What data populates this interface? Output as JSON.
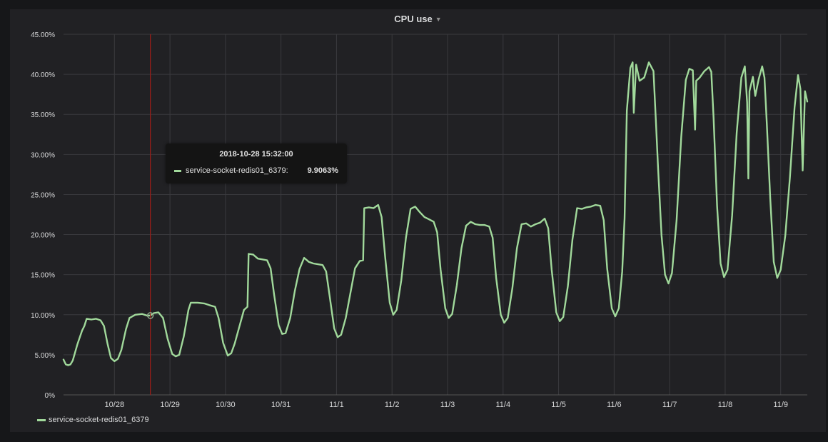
{
  "panel": {
    "title": "CPU use",
    "caret_icon": "caret-down-icon"
  },
  "colors": {
    "series": "#a1d99b",
    "crosshair": "#9e1d18",
    "grid": "#3a3a3e",
    "text": "#d8d9da",
    "background": "#212124"
  },
  "tooltip": {
    "time": "2018-10-28 15:32:00",
    "series_name": "service-socket-redis01_6379:",
    "value": "9.9063%"
  },
  "chart_data": {
    "type": "line",
    "title": "CPU use",
    "xlabel": "",
    "ylabel": "",
    "ylim": [
      0,
      45
    ],
    "xlim": [
      "2018-10-27T02:00",
      "2018-11-09T11:30"
    ],
    "y_ticks": [
      "0%",
      "5.00%",
      "10.00%",
      "15.00%",
      "20.00%",
      "25.00%",
      "30.00%",
      "35.00%",
      "40.00%",
      "45.00%"
    ],
    "y_tick_values": [
      0,
      5,
      10,
      15,
      20,
      25,
      30,
      35,
      40,
      45
    ],
    "x_ticks": [
      "10/28",
      "10/29",
      "10/30",
      "10/31",
      "11/1",
      "11/2",
      "11/3",
      "11/4",
      "11/5",
      "11/6",
      "11/7",
      "11/8",
      "11/9"
    ],
    "x_tick_times": [
      "2018-10-28T00:00",
      "2018-10-29T00:00",
      "2018-10-30T00:00",
      "2018-10-31T00:00",
      "2018-11-01T00:00",
      "2018-11-02T00:00",
      "2018-11-03T00:00",
      "2018-11-04T00:00",
      "2018-11-05T00:00",
      "2018-11-06T00:00",
      "2018-11-07T00:00",
      "2018-11-08T00:00",
      "2018-11-09T00:00"
    ],
    "grid": true,
    "legend_position": "bottom-left",
    "crosshair_time": "2018-10-28T15:32",
    "series": [
      {
        "name": "service-socket-redis01_6379",
        "color": "#a1d99b",
        "points": [
          [
            "2018-10-27T02:00",
            4.4
          ],
          [
            "2018-10-27T03:00",
            3.8
          ],
          [
            "2018-10-27T04:00",
            3.7
          ],
          [
            "2018-10-27T05:00",
            3.8
          ],
          [
            "2018-10-27T06:00",
            4.3
          ],
          [
            "2018-10-27T08:00",
            6.3
          ],
          [
            "2018-10-27T10:00",
            8.0
          ],
          [
            "2018-10-27T11:00",
            8.6
          ],
          [
            "2018-10-27T12:00",
            9.5
          ],
          [
            "2018-10-27T14:00",
            9.4
          ],
          [
            "2018-10-27T16:00",
            9.5
          ],
          [
            "2018-10-27T18:00",
            9.3
          ],
          [
            "2018-10-27T19:30",
            8.6
          ],
          [
            "2018-10-27T21:00",
            6.4
          ],
          [
            "2018-10-27T22:30",
            4.6
          ],
          [
            "2018-10-28T00:00",
            4.2
          ],
          [
            "2018-10-28T01:30",
            4.5
          ],
          [
            "2018-10-28T03:00",
            5.6
          ],
          [
            "2018-10-28T05:00",
            8.2
          ],
          [
            "2018-10-28T06:30",
            9.6
          ],
          [
            "2018-10-28T09:00",
            10.0
          ],
          [
            "2018-10-28T12:00",
            10.1
          ],
          [
            "2018-10-28T14:00",
            9.9
          ],
          [
            "2018-10-28T15:32",
            9.9
          ],
          [
            "2018-10-28T17:00",
            10.2
          ],
          [
            "2018-10-28T19:00",
            10.3
          ],
          [
            "2018-10-28T21:00",
            9.6
          ],
          [
            "2018-10-28T23:00",
            7.0
          ],
          [
            "2018-10-29T01:00",
            5.1
          ],
          [
            "2018-10-29T02:30",
            4.8
          ],
          [
            "2018-10-29T04:00",
            5.0
          ],
          [
            "2018-10-29T06:00",
            7.3
          ],
          [
            "2018-10-29T08:00",
            10.6
          ],
          [
            "2018-10-29T09:00",
            11.5
          ],
          [
            "2018-10-29T12:00",
            11.5
          ],
          [
            "2018-10-29T15:00",
            11.4
          ],
          [
            "2018-10-29T17:00",
            11.2
          ],
          [
            "2018-10-29T19:30",
            11.0
          ],
          [
            "2018-10-29T21:00",
            9.6
          ],
          [
            "2018-10-29T23:00",
            6.5
          ],
          [
            "2018-10-30T01:00",
            4.9
          ],
          [
            "2018-10-30T02:30",
            5.2
          ],
          [
            "2018-10-30T04:00",
            6.4
          ],
          [
            "2018-10-30T06:00",
            8.5
          ],
          [
            "2018-10-30T08:00",
            10.6
          ],
          [
            "2018-10-30T09:30",
            11.0
          ],
          [
            "2018-10-30T10:00",
            17.6
          ],
          [
            "2018-10-30T12:00",
            17.5
          ],
          [
            "2018-10-30T14:00",
            17.0
          ],
          [
            "2018-10-30T16:00",
            16.9
          ],
          [
            "2018-10-30T18:00",
            16.8
          ],
          [
            "2018-10-30T19:30",
            15.8
          ],
          [
            "2018-10-30T21:00",
            12.6
          ],
          [
            "2018-10-30T23:00",
            8.7
          ],
          [
            "2018-10-31T00:30",
            7.6
          ],
          [
            "2018-10-31T02:00",
            7.7
          ],
          [
            "2018-10-31T04:00",
            9.6
          ],
          [
            "2018-10-31T06:00",
            13.0
          ],
          [
            "2018-10-31T08:00",
            15.7
          ],
          [
            "2018-10-31T10:00",
            17.1
          ],
          [
            "2018-10-31T12:00",
            16.6
          ],
          [
            "2018-10-31T14:00",
            16.4
          ],
          [
            "2018-10-31T16:00",
            16.3
          ],
          [
            "2018-10-31T18:00",
            16.2
          ],
          [
            "2018-10-31T19:30",
            15.4
          ],
          [
            "2018-10-31T21:00",
            12.4
          ],
          [
            "2018-10-31T23:00",
            8.3
          ],
          [
            "2018-11-01T00:30",
            7.2
          ],
          [
            "2018-11-01T02:00",
            7.5
          ],
          [
            "2018-11-01T04:00",
            9.6
          ],
          [
            "2018-11-01T06:00",
            12.7
          ],
          [
            "2018-11-01T08:00",
            15.8
          ],
          [
            "2018-11-01T10:00",
            16.7
          ],
          [
            "2018-11-01T11:30",
            16.8
          ],
          [
            "2018-11-01T12:00",
            23.3
          ],
          [
            "2018-11-01T14:00",
            23.4
          ],
          [
            "2018-11-01T16:00",
            23.3
          ],
          [
            "2018-11-01T18:00",
            23.7
          ],
          [
            "2018-11-01T19:30",
            22.2
          ],
          [
            "2018-11-01T21:00",
            17.3
          ],
          [
            "2018-11-01T23:00",
            11.5
          ],
          [
            "2018-11-02T00:30",
            10.0
          ],
          [
            "2018-11-02T02:00",
            10.6
          ],
          [
            "2018-11-02T04:00",
            14.3
          ],
          [
            "2018-11-02T06:00",
            19.6
          ],
          [
            "2018-11-02T08:00",
            23.2
          ],
          [
            "2018-11-02T10:00",
            23.5
          ],
          [
            "2018-11-02T12:00",
            22.8
          ],
          [
            "2018-11-02T14:00",
            22.2
          ],
          [
            "2018-11-02T16:00",
            21.9
          ],
          [
            "2018-11-02T18:00",
            21.6
          ],
          [
            "2018-11-02T19:30",
            20.3
          ],
          [
            "2018-11-02T21:00",
            15.6
          ],
          [
            "2018-11-02T23:00",
            10.8
          ],
          [
            "2018-11-03T00:30",
            9.6
          ],
          [
            "2018-11-03T02:00",
            10.1
          ],
          [
            "2018-11-03T04:00",
            13.7
          ],
          [
            "2018-11-03T06:00",
            18.3
          ],
          [
            "2018-11-03T08:00",
            21.1
          ],
          [
            "2018-11-03T10:00",
            21.6
          ],
          [
            "2018-11-03T12:00",
            21.3
          ],
          [
            "2018-11-03T14:00",
            21.2
          ],
          [
            "2018-11-03T16:00",
            21.2
          ],
          [
            "2018-11-03T18:00",
            21.0
          ],
          [
            "2018-11-03T19:30",
            19.6
          ],
          [
            "2018-11-03T21:00",
            14.6
          ],
          [
            "2018-11-03T23:00",
            10.0
          ],
          [
            "2018-11-04T00:30",
            9.0
          ],
          [
            "2018-11-04T02:00",
            9.6
          ],
          [
            "2018-11-04T04:00",
            13.3
          ],
          [
            "2018-11-04T06:00",
            18.3
          ],
          [
            "2018-11-04T08:00",
            21.3
          ],
          [
            "2018-11-04T10:00",
            21.4
          ],
          [
            "2018-11-04T12:00",
            21.0
          ],
          [
            "2018-11-04T14:00",
            21.3
          ],
          [
            "2018-11-04T16:00",
            21.5
          ],
          [
            "2018-11-04T18:00",
            22.0
          ],
          [
            "2018-11-04T19:30",
            20.8
          ],
          [
            "2018-11-04T21:00",
            15.6
          ],
          [
            "2018-11-04T23:00",
            10.3
          ],
          [
            "2018-11-05T00:30",
            9.2
          ],
          [
            "2018-11-05T02:00",
            9.7
          ],
          [
            "2018-11-05T04:00",
            13.6
          ],
          [
            "2018-11-05T06:00",
            19.4
          ],
          [
            "2018-11-05T08:00",
            23.3
          ],
          [
            "2018-11-05T10:00",
            23.2
          ],
          [
            "2018-11-05T12:00",
            23.4
          ],
          [
            "2018-11-05T14:00",
            23.5
          ],
          [
            "2018-11-05T16:00",
            23.7
          ],
          [
            "2018-11-05T18:00",
            23.6
          ],
          [
            "2018-11-05T19:30",
            21.8
          ],
          [
            "2018-11-05T21:00",
            15.8
          ],
          [
            "2018-11-05T23:00",
            10.8
          ],
          [
            "2018-11-06T00:30",
            9.8
          ],
          [
            "2018-11-06T02:00",
            10.8
          ],
          [
            "2018-11-06T03:30",
            15.4
          ],
          [
            "2018-11-06T04:30",
            22.0
          ],
          [
            "2018-11-06T05:30",
            35.5
          ],
          [
            "2018-11-06T07:00",
            40.8
          ],
          [
            "2018-11-06T08:00",
            41.5
          ],
          [
            "2018-11-06T08:30",
            35.2
          ],
          [
            "2018-11-06T09:30",
            41.2
          ],
          [
            "2018-11-06T11:00",
            39.2
          ],
          [
            "2018-11-06T13:00",
            39.6
          ],
          [
            "2018-11-06T15:00",
            41.5
          ],
          [
            "2018-11-06T17:00",
            40.4
          ],
          [
            "2018-11-06T18:00",
            34.5
          ],
          [
            "2018-11-06T19:00",
            28.2
          ],
          [
            "2018-11-06T20:30",
            19.9
          ],
          [
            "2018-11-06T22:00",
            15.0
          ],
          [
            "2018-11-06T23:30",
            13.9
          ],
          [
            "2018-11-07T01:00",
            15.2
          ],
          [
            "2018-11-07T03:00",
            21.8
          ],
          [
            "2018-11-07T05:00",
            32.2
          ],
          [
            "2018-11-07T07:00",
            39.3
          ],
          [
            "2018-11-07T08:30",
            40.7
          ],
          [
            "2018-11-07T10:00",
            40.5
          ],
          [
            "2018-11-07T11:00",
            33.1
          ],
          [
            "2018-11-07T11:30",
            39.2
          ],
          [
            "2018-11-07T13:00",
            39.6
          ],
          [
            "2018-11-07T15:00",
            40.4
          ],
          [
            "2018-11-07T17:00",
            40.9
          ],
          [
            "2018-11-07T18:00",
            40.3
          ],
          [
            "2018-11-07T19:00",
            34.6
          ],
          [
            "2018-11-07T20:30",
            23.6
          ],
          [
            "2018-11-07T22:00",
            16.4
          ],
          [
            "2018-11-07T23:30",
            14.7
          ],
          [
            "2018-11-08T01:00",
            15.6
          ],
          [
            "2018-11-08T03:00",
            22.4
          ],
          [
            "2018-11-08T05:00",
            32.7
          ],
          [
            "2018-11-08T07:00",
            39.6
          ],
          [
            "2018-11-08T08:30",
            41.0
          ],
          [
            "2018-11-08T09:30",
            36.5
          ],
          [
            "2018-11-08T10:00",
            27.0
          ],
          [
            "2018-11-08T10:30",
            37.9
          ],
          [
            "2018-11-08T12:00",
            39.7
          ],
          [
            "2018-11-08T13:00",
            37.3
          ],
          [
            "2018-11-08T14:30",
            39.4
          ],
          [
            "2018-11-08T16:00",
            41.0
          ],
          [
            "2018-11-08T17:00",
            39.6
          ],
          [
            "2018-11-08T18:00",
            33.8
          ],
          [
            "2018-11-08T19:30",
            24.5
          ],
          [
            "2018-11-08T21:00",
            16.6
          ],
          [
            "2018-11-08T22:30",
            14.6
          ],
          [
            "2018-11-09T00:00",
            15.6
          ],
          [
            "2018-11-09T02:00",
            19.9
          ],
          [
            "2018-11-09T04:00",
            27.2
          ],
          [
            "2018-11-09T06:00",
            35.9
          ],
          [
            "2018-11-09T07:30",
            39.9
          ],
          [
            "2018-11-09T08:30",
            38.2
          ],
          [
            "2018-11-09T09:30",
            28.0
          ],
          [
            "2018-11-09T10:30",
            37.9
          ],
          [
            "2018-11-09T11:30",
            36.6
          ]
        ]
      }
    ]
  },
  "legend": {
    "items": [
      {
        "label": "service-socket-redis01_6379",
        "color": "#a1d99b"
      }
    ]
  }
}
